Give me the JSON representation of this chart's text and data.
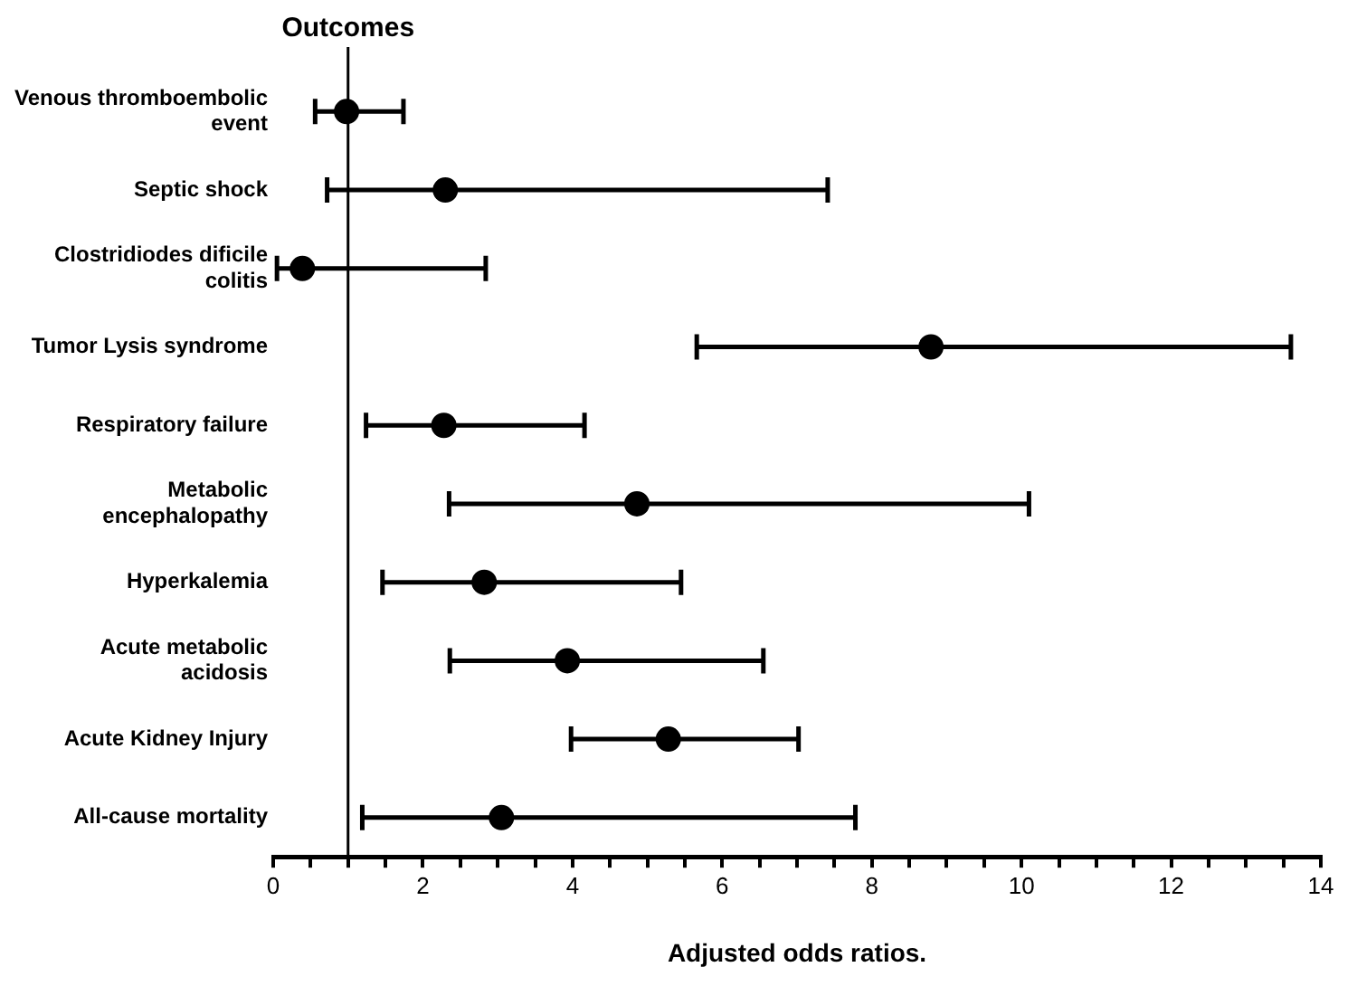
{
  "chart_data": {
    "type": "scatter",
    "orientation": "horizontal",
    "title": "Outcomes",
    "xlabel": "Adjusted odds ratios.",
    "categories": [
      "Venous thromboembolic event",
      "Septic shock",
      "Clostridiodes dificile colitis",
      "Tumor Lysis syndrome",
      "Respiratory failure",
      "Metabolic encephalopathy",
      "Hyperkalemia",
      "Acute metabolic acidosis",
      "Acute Kidney Injury",
      "All-cause mortality"
    ],
    "values": [
      0.98,
      2.3,
      0.39,
      8.79,
      2.28,
      4.86,
      2.82,
      3.93,
      5.28,
      3.05
    ],
    "errors": [
      [
        0.56,
        1.74
      ],
      [
        0.72,
        7.41
      ],
      [
        0.05,
        2.84
      ],
      [
        5.66,
        13.6
      ],
      [
        1.24,
        4.16
      ],
      [
        2.35,
        10.1
      ],
      [
        1.46,
        5.45
      ],
      [
        2.36,
        6.55
      ],
      [
        3.98,
        7.02
      ],
      [
        1.19,
        7.78
      ]
    ],
    "color": "#000000",
    "marker": "circle",
    "grid": false,
    "legend": false,
    "xlim": [
      0,
      14
    ],
    "xticks": [
      0,
      {
        "value": 0.5,
        "label": null
      },
      2,
      {
        "value": 1,
        "label": null
      },
      {
        "value": 1.5,
        "label": null
      },
      {
        "value": 2.5,
        "label": null
      },
      {
        "value": 3,
        "label": null
      },
      {
        "value": 3.5,
        "label": null
      },
      4,
      {
        "value": 4.5,
        "label": null
      },
      {
        "value": 5,
        "label": null
      },
      {
        "value": 5.5,
        "label": null
      },
      6,
      {
        "value": 6.5,
        "label": null
      },
      {
        "value": 7,
        "label": null
      },
      {
        "value": 7.5,
        "label": null
      },
      8,
      {
        "value": 8.5,
        "label": null
      },
      {
        "value": 9,
        "label": null
      },
      {
        "value": 9.5,
        "label": null
      },
      10,
      {
        "value": 10.5,
        "label": null
      },
      {
        "value": 11,
        "label": null
      },
      {
        "value": 11.5,
        "label": null
      },
      12,
      {
        "value": 12.5,
        "label": null
      },
      {
        "value": 13,
        "label": null
      },
      {
        "value": 13.5,
        "label": null
      },
      14
    ],
    "ref_lines": [
      {
        "axis": "x",
        "value": 1,
        "color": "#000000"
      }
    ]
  }
}
